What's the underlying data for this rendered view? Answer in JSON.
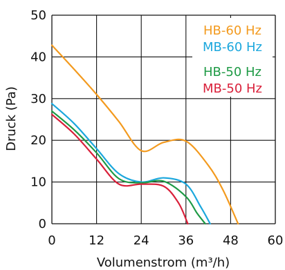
{
  "chart_data": {
    "type": "line",
    "xlabel": "Volumenstrom (m³/h)",
    "ylabel": "Druck (Pa)",
    "xlim": [
      0,
      60
    ],
    "ylim": [
      0,
      50
    ],
    "x_ticks": [
      "0",
      "12",
      "24",
      "36",
      "48",
      "60"
    ],
    "y_ticks": [
      "0",
      "10",
      "20",
      "30",
      "40",
      "50"
    ],
    "grid": true,
    "legend_position": "top-right",
    "series": [
      {
        "name": "HB-60 Hz",
        "color": "#F39A1E",
        "points": [
          [
            0,
            42.8
          ],
          [
            6,
            37.0
          ],
          [
            12,
            31.0
          ],
          [
            18,
            24.5
          ],
          [
            24,
            17.5
          ],
          [
            30,
            19.5
          ],
          [
            36,
            19.8
          ],
          [
            42,
            14.0
          ],
          [
            46,
            8.0
          ],
          [
            50,
            0
          ]
        ]
      },
      {
        "name": "MB-60 Hz",
        "color": "#1BA7DD",
        "points": [
          [
            0,
            28.8
          ],
          [
            6,
            24.0
          ],
          [
            12,
            18.0
          ],
          [
            18,
            12.0
          ],
          [
            24,
            10.0
          ],
          [
            30,
            11.0
          ],
          [
            36,
            9.5
          ],
          [
            40,
            4.0
          ],
          [
            42.5,
            0
          ]
        ]
      },
      {
        "name": "HB-50 Hz",
        "color": "#1E9A45",
        "points": [
          [
            0,
            27.0
          ],
          [
            6,
            22.5
          ],
          [
            12,
            17.0
          ],
          [
            18,
            10.8
          ],
          [
            24,
            9.8
          ],
          [
            30,
            10.2
          ],
          [
            36,
            6.5
          ],
          [
            39,
            2.5
          ],
          [
            41.2,
            0
          ]
        ]
      },
      {
        "name": "MB-50 Hz",
        "color": "#D9203A",
        "points": [
          [
            0,
            26.2
          ],
          [
            6,
            21.5
          ],
          [
            12,
            15.5
          ],
          [
            18,
            9.5
          ],
          [
            24,
            9.5
          ],
          [
            30,
            9.0
          ],
          [
            34,
            5.0
          ],
          [
            36.5,
            0
          ]
        ]
      }
    ]
  }
}
